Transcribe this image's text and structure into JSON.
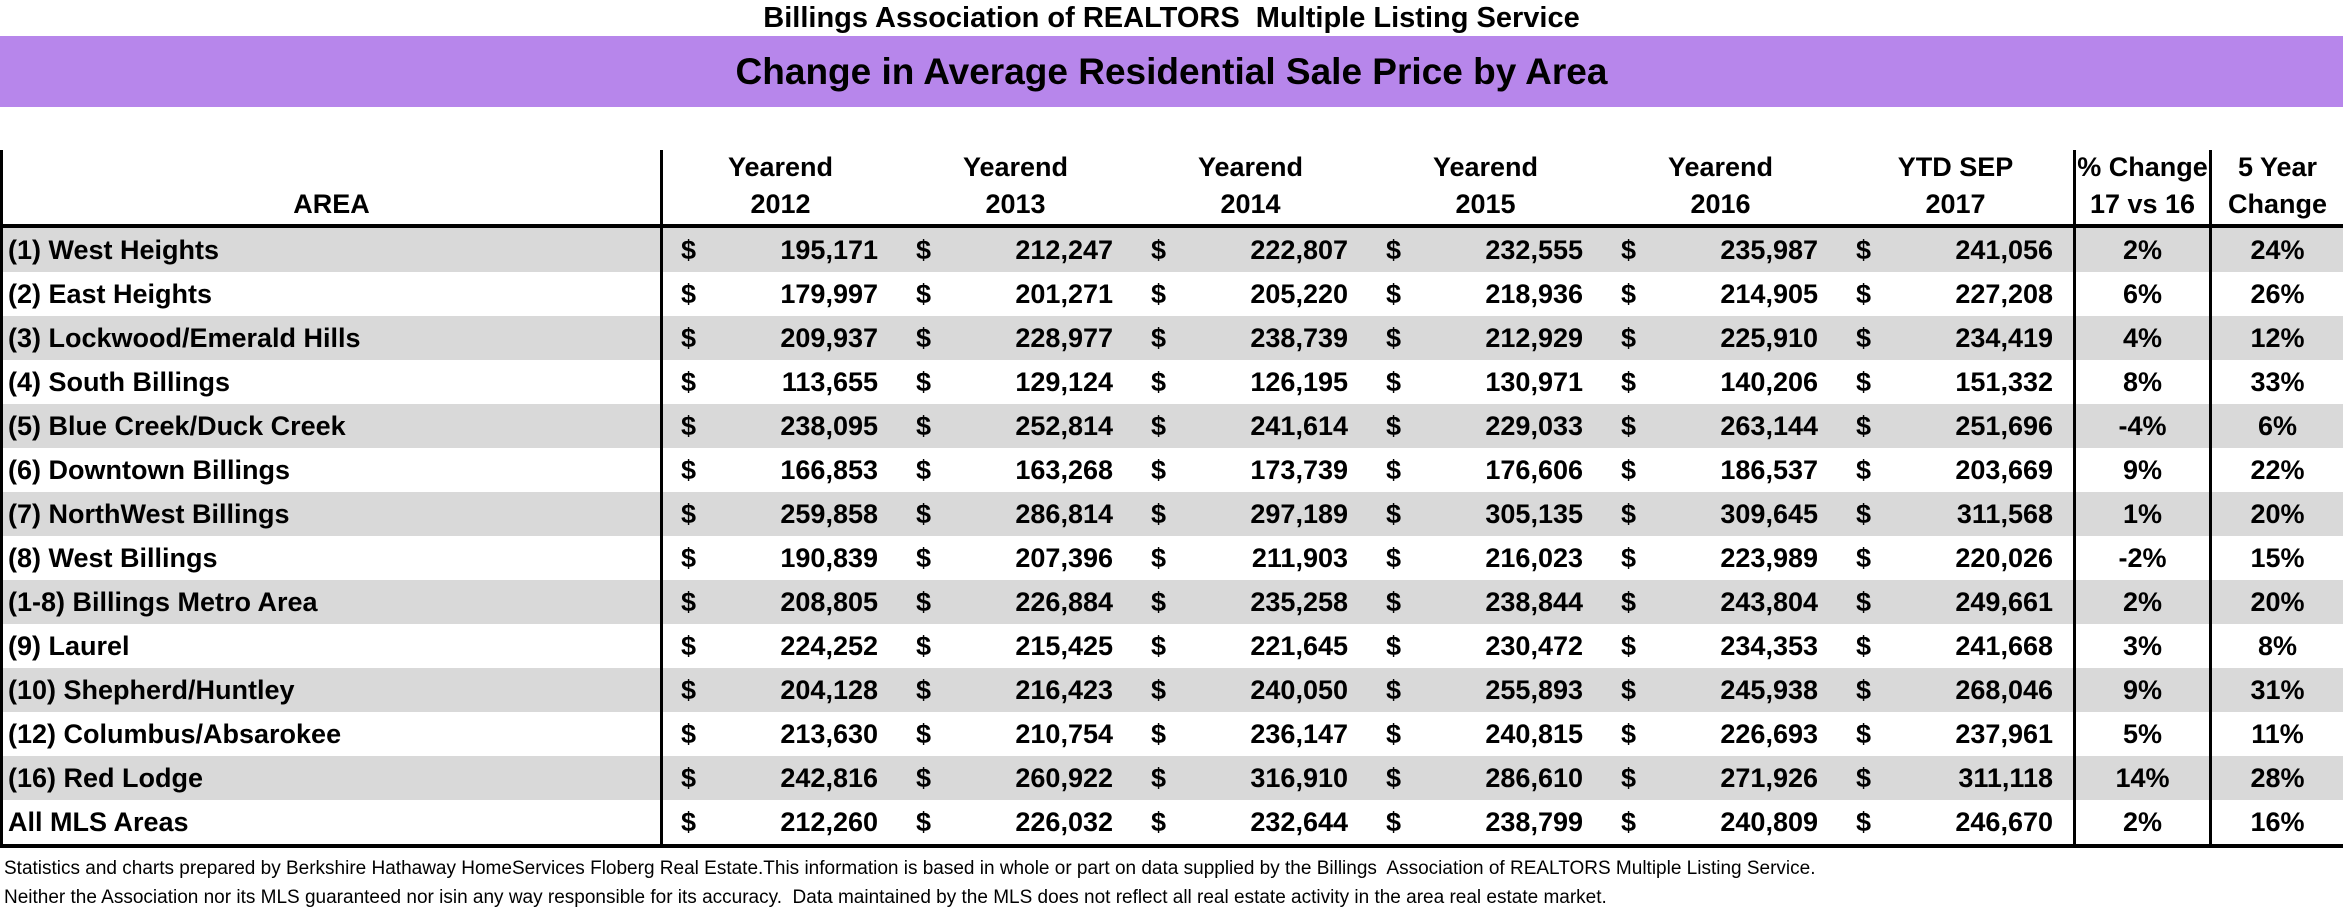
{
  "title": "Billings Association of REALTORS  Multiple Listing Service",
  "banner": {
    "text": "Change in Average Residential Sale Price by Area"
  },
  "colors": {
    "banner_bg": "#B786EB",
    "alt_row_bg": "#D9D9D9"
  },
  "table": {
    "area_header": "AREA",
    "currency_symbol": "$",
    "year_columns": [
      {
        "line1": "Yearend",
        "line2": "2012"
      },
      {
        "line1": "Yearend",
        "line2": "2013"
      },
      {
        "line1": "Yearend",
        "line2": "2014"
      },
      {
        "line1": "Yearend",
        "line2": "2015"
      },
      {
        "line1": "Yearend",
        "line2": "2016"
      },
      {
        "line1": "YTD SEP",
        "line2": "2017"
      }
    ],
    "pct_change_header": {
      "line1": "% Change",
      "line2": "17 vs 16"
    },
    "five_year_header": {
      "line1": "5 Year",
      "line2": "Change"
    },
    "rows": [
      {
        "area": "(1) West Heights",
        "values": [
          "195,171",
          "212,247",
          "222,807",
          "232,555",
          "235,987",
          "241,056"
        ],
        "pct_change": "2%",
        "five_year": "24%"
      },
      {
        "area": "(2) East Heights",
        "values": [
          "179,997",
          "201,271",
          "205,220",
          "218,936",
          "214,905",
          "227,208"
        ],
        "pct_change": "6%",
        "five_year": "26%"
      },
      {
        "area": "(3) Lockwood/Emerald Hills",
        "values": [
          "209,937",
          "228,977",
          "238,739",
          "212,929",
          "225,910",
          "234,419"
        ],
        "pct_change": "4%",
        "five_year": "12%"
      },
      {
        "area": "(4) South Billings",
        "values": [
          "113,655",
          "129,124",
          "126,195",
          "130,971",
          "140,206",
          "151,332"
        ],
        "pct_change": "8%",
        "five_year": "33%"
      },
      {
        "area": "(5) Blue Creek/Duck Creek",
        "values": [
          "238,095",
          "252,814",
          "241,614",
          "229,033",
          "263,144",
          "251,696"
        ],
        "pct_change": "-4%",
        "five_year": "6%"
      },
      {
        "area": "(6) Downtown Billings",
        "values": [
          "166,853",
          "163,268",
          "173,739",
          "176,606",
          "186,537",
          "203,669"
        ],
        "pct_change": "9%",
        "five_year": "22%"
      },
      {
        "area": "(7) NorthWest Billings",
        "values": [
          "259,858",
          "286,814",
          "297,189",
          "305,135",
          "309,645",
          "311,568"
        ],
        "pct_change": "1%",
        "five_year": "20%"
      },
      {
        "area": "(8) West Billings",
        "values": [
          "190,839",
          "207,396",
          "211,903",
          "216,023",
          "223,989",
          "220,026"
        ],
        "pct_change": "-2%",
        "five_year": "15%"
      },
      {
        "area": "(1-8) Billings Metro Area",
        "values": [
          "208,805",
          "226,884",
          "235,258",
          "238,844",
          "243,804",
          "249,661"
        ],
        "pct_change": "2%",
        "five_year": "20%"
      },
      {
        "area": "(9) Laurel",
        "values": [
          "224,252",
          "215,425",
          "221,645",
          "230,472",
          "234,353",
          "241,668"
        ],
        "pct_change": "3%",
        "five_year": "8%"
      },
      {
        "area": "(10) Shepherd/Huntley",
        "values": [
          "204,128",
          "216,423",
          "240,050",
          "255,893",
          "245,938",
          "268,046"
        ],
        "pct_change": "9%",
        "five_year": "31%"
      },
      {
        "area": "(12) Columbus/Absarokee",
        "values": [
          "213,630",
          "210,754",
          "236,147",
          "240,815",
          "226,693",
          "237,961"
        ],
        "pct_change": "5%",
        "five_year": "11%"
      },
      {
        "area": "(16) Red Lodge",
        "values": [
          "242,816",
          "260,922",
          "316,910",
          "286,610",
          "271,926",
          "311,118"
        ],
        "pct_change": "14%",
        "five_year": "28%"
      },
      {
        "area": "All MLS Areas",
        "values": [
          "212,260",
          "226,032",
          "232,644",
          "238,799",
          "240,809",
          "246,670"
        ],
        "pct_change": "2%",
        "five_year": "16%"
      }
    ]
  },
  "footer": {
    "line1": "Statistics and charts prepared by Berkshire Hathaway HomeServices Floberg Real Estate.This information is based in whole or part on data supplied by the Billings  Association of REALTORS Multiple Listing Service.",
    "line2": "Neither the Association nor its MLS guaranteed nor isin any way responsible for its accuracy.  Data maintained by the MLS does not reflect all real estate activity in the area real estate market."
  }
}
